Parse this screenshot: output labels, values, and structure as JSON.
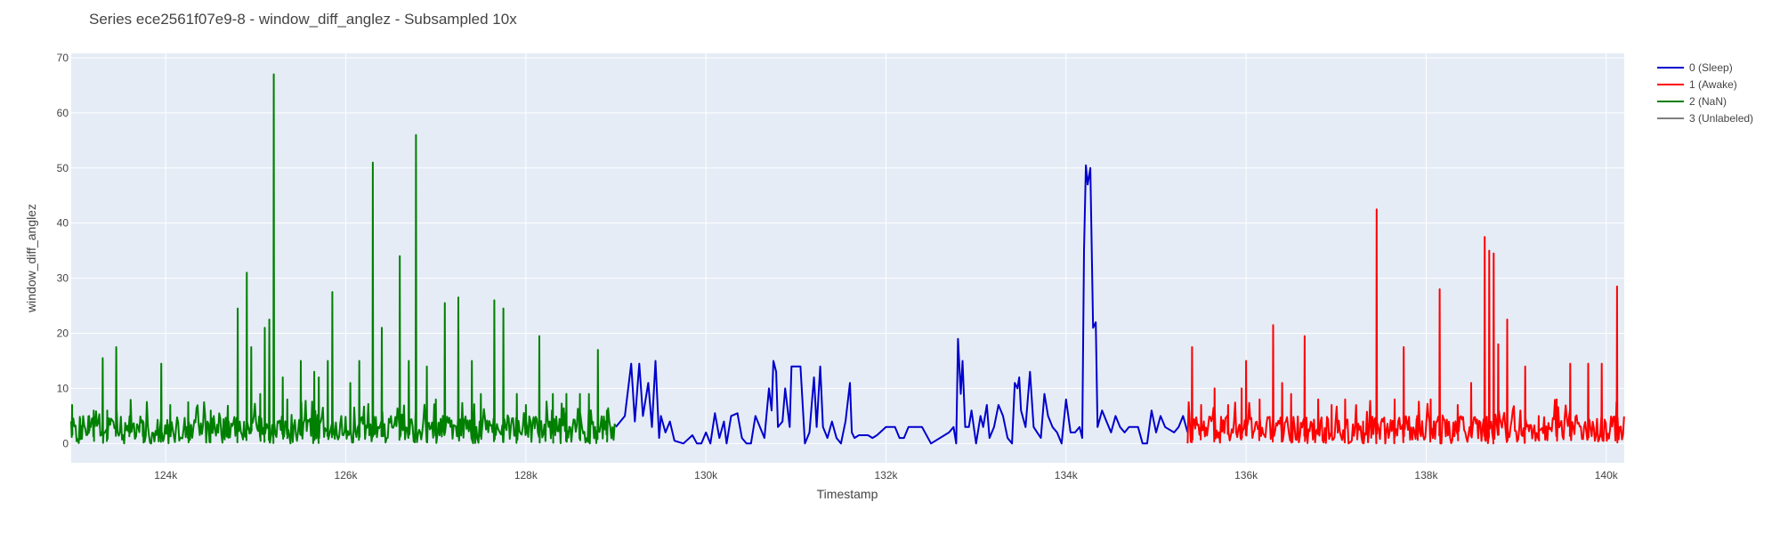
{
  "chart_data": {
    "type": "line",
    "title": "Series ece2561f07e9-8 - window_diff_anglez - Subsampled 10x",
    "xlabel": "Timestamp",
    "ylabel": "window_diff_anglez",
    "xlim": [
      122950,
      140200
    ],
    "ylim": [
      -3.5,
      70.8
    ],
    "x_ticks": [
      124000,
      126000,
      128000,
      130000,
      132000,
      134000,
      136000,
      138000,
      140000
    ],
    "x_tick_labels": [
      "124k",
      "126k",
      "128k",
      "130k",
      "132k",
      "134k",
      "136k",
      "138k",
      "140k"
    ],
    "y_ticks": [
      0,
      10,
      20,
      30,
      40,
      50,
      60,
      70
    ],
    "y_tick_labels": [
      "0",
      "10",
      "20",
      "30",
      "40",
      "50",
      "60",
      "70"
    ],
    "grid": true,
    "legend_position": "top-right outside",
    "series": [
      {
        "name": "0 (Sleep)",
        "color": "#0000cc",
        "x_range": [
          129000,
          135350
        ],
        "points": [
          [
            129000,
            3
          ],
          [
            129100,
            5
          ],
          [
            129170,
            14.5
          ],
          [
            129210,
            4
          ],
          [
            129260,
            14.5
          ],
          [
            129300,
            5
          ],
          [
            129360,
            11
          ],
          [
            129400,
            3
          ],
          [
            129440,
            15
          ],
          [
            129480,
            1
          ],
          [
            129500,
            5
          ],
          [
            129550,
            2
          ],
          [
            129600,
            4
          ],
          [
            129650,
            0.5
          ],
          [
            129750,
            0
          ],
          [
            129850,
            1.5
          ],
          [
            129900,
            0
          ],
          [
            129950,
            0
          ],
          [
            130000,
            2
          ],
          [
            130050,
            0
          ],
          [
            130100,
            5.5
          ],
          [
            130150,
            1
          ],
          [
            130200,
            4
          ],
          [
            130230,
            0
          ],
          [
            130280,
            5
          ],
          [
            130350,
            5.5
          ],
          [
            130400,
            1
          ],
          [
            130450,
            0
          ],
          [
            130500,
            0
          ],
          [
            130550,
            5
          ],
          [
            130650,
            1
          ],
          [
            130700,
            10
          ],
          [
            130730,
            6
          ],
          [
            130750,
            15
          ],
          [
            130780,
            13
          ],
          [
            130800,
            3
          ],
          [
            130850,
            4
          ],
          [
            130880,
            10
          ],
          [
            130930,
            3
          ],
          [
            130950,
            14
          ],
          [
            131050,
            14
          ],
          [
            131100,
            0
          ],
          [
            131150,
            2
          ],
          [
            131180,
            8
          ],
          [
            131200,
            12
          ],
          [
            131230,
            3
          ],
          [
            131270,
            14
          ],
          [
            131300,
            3
          ],
          [
            131350,
            1
          ],
          [
            131400,
            4
          ],
          [
            131450,
            1
          ],
          [
            131500,
            0
          ],
          [
            131550,
            4
          ],
          [
            131600,
            11
          ],
          [
            131620,
            2
          ],
          [
            131650,
            1
          ],
          [
            131700,
            1.5
          ],
          [
            131800,
            1.5
          ],
          [
            131850,
            1
          ],
          [
            131900,
            1.5
          ],
          [
            132000,
            3
          ],
          [
            132100,
            3
          ],
          [
            132150,
            1
          ],
          [
            132200,
            1
          ],
          [
            132250,
            3
          ],
          [
            132400,
            3
          ],
          [
            132500,
            0
          ],
          [
            132700,
            2
          ],
          [
            132750,
            3
          ],
          [
            132780,
            0
          ],
          [
            132800,
            19
          ],
          [
            132830,
            9
          ],
          [
            132850,
            15
          ],
          [
            132880,
            3
          ],
          [
            132920,
            3
          ],
          [
            132950,
            6
          ],
          [
            133000,
            0
          ],
          [
            133050,
            5
          ],
          [
            133080,
            3
          ],
          [
            133120,
            7
          ],
          [
            133150,
            1
          ],
          [
            133200,
            3
          ],
          [
            133250,
            7
          ],
          [
            133300,
            5
          ],
          [
            133350,
            1
          ],
          [
            133400,
            0
          ],
          [
            133430,
            11
          ],
          [
            133460,
            10
          ],
          [
            133480,
            12
          ],
          [
            133500,
            6
          ],
          [
            133550,
            3
          ],
          [
            133600,
            13
          ],
          [
            133640,
            3
          ],
          [
            133680,
            2
          ],
          [
            133720,
            1
          ],
          [
            133760,
            9
          ],
          [
            133800,
            5
          ],
          [
            133850,
            3
          ],
          [
            133900,
            2
          ],
          [
            133950,
            0
          ],
          [
            134000,
            8
          ],
          [
            134050,
            2
          ],
          [
            134100,
            2
          ],
          [
            134150,
            3
          ],
          [
            134180,
            1
          ],
          [
            134200,
            35
          ],
          [
            134220,
            50.5
          ],
          [
            134240,
            47
          ],
          [
            134270,
            50
          ],
          [
            134300,
            21
          ],
          [
            134330,
            22
          ],
          [
            134350,
            3
          ],
          [
            134400,
            6
          ],
          [
            134450,
            4
          ],
          [
            134500,
            2
          ],
          [
            134550,
            5
          ],
          [
            134600,
            3
          ],
          [
            134650,
            2
          ],
          [
            134700,
            3
          ],
          [
            134800,
            3
          ],
          [
            134850,
            0
          ],
          [
            134900,
            0
          ],
          [
            134950,
            6
          ],
          [
            135000,
            2
          ],
          [
            135050,
            5
          ],
          [
            135100,
            3
          ],
          [
            135200,
            2
          ],
          [
            135250,
            3
          ],
          [
            135300,
            5
          ],
          [
            135350,
            2
          ]
        ]
      },
      {
        "name": "1 (Awake)",
        "color": "#ff0000",
        "x_range": [
          135350,
          140200
        ],
        "peaks": [
          [
            135400,
            17.5
          ],
          [
            135500,
            7
          ],
          [
            135650,
            10
          ],
          [
            135800,
            7
          ],
          [
            135950,
            10
          ],
          [
            136000,
            15
          ],
          [
            136150,
            8
          ],
          [
            136300,
            21.5
          ],
          [
            136400,
            11
          ],
          [
            136500,
            9
          ],
          [
            136650,
            19.5
          ],
          [
            136800,
            8
          ],
          [
            136950,
            7
          ],
          [
            137100,
            8
          ],
          [
            137300,
            4
          ],
          [
            137450,
            42.5
          ],
          [
            137650,
            8
          ],
          [
            137750,
            17.5
          ],
          [
            137900,
            5
          ],
          [
            138050,
            8
          ],
          [
            138150,
            28
          ],
          [
            138350,
            7
          ],
          [
            138500,
            11
          ],
          [
            138650,
            37.5
          ],
          [
            138700,
            35
          ],
          [
            138750,
            34.5
          ],
          [
            138800,
            18
          ],
          [
            138900,
            22.5
          ],
          [
            139100,
            14
          ],
          [
            139250,
            5
          ],
          [
            139450,
            8
          ],
          [
            139600,
            14.5
          ],
          [
            139800,
            14.5
          ],
          [
            139950,
            14.5
          ],
          [
            140120,
            28.5
          ]
        ],
        "baseline": [
          0,
          5
        ]
      },
      {
        "name": "2 (NaN)",
        "color": "#008000",
        "x_range": [
          122950,
          129000
        ],
        "peaks": [
          [
            122960,
            7
          ],
          [
            123050,
            4.5
          ],
          [
            123150,
            5
          ],
          [
            123200,
            6
          ],
          [
            123300,
            15.5
          ],
          [
            123350,
            6
          ],
          [
            123450,
            17.5
          ],
          [
            123600,
            5
          ],
          [
            123750,
            4
          ],
          [
            123950,
            14.5
          ],
          [
            124050,
            7
          ],
          [
            124250,
            7.5
          ],
          [
            124500,
            6
          ],
          [
            124700,
            4
          ],
          [
            124800,
            24.5
          ],
          [
            124900,
            31
          ],
          [
            124950,
            17.5
          ],
          [
            125050,
            9
          ],
          [
            125100,
            21
          ],
          [
            125150,
            22.5
          ],
          [
            125200,
            67
          ],
          [
            125300,
            12
          ],
          [
            125350,
            8
          ],
          [
            125500,
            15
          ],
          [
            125650,
            13
          ],
          [
            125700,
            12
          ],
          [
            125800,
            15
          ],
          [
            125850,
            27.5
          ],
          [
            126050,
            11
          ],
          [
            126150,
            15
          ],
          [
            126300,
            51
          ],
          [
            126400,
            21
          ],
          [
            126600,
            34
          ],
          [
            126700,
            15
          ],
          [
            126780,
            56
          ],
          [
            126900,
            14
          ],
          [
            127000,
            8
          ],
          [
            127100,
            25.5
          ],
          [
            127250,
            26.5
          ],
          [
            127400,
            15
          ],
          [
            127500,
            9
          ],
          [
            127650,
            26
          ],
          [
            127750,
            24.5
          ],
          [
            127900,
            9
          ],
          [
            128000,
            7
          ],
          [
            128150,
            19.5
          ],
          [
            128300,
            9
          ],
          [
            128450,
            9
          ],
          [
            128600,
            9
          ],
          [
            128700,
            9
          ],
          [
            128800,
            17
          ],
          [
            128900,
            6
          ]
        ],
        "baseline": [
          0,
          5
        ]
      },
      {
        "name": "3 (Unlabeled)",
        "color": "#808080",
        "x_range": [],
        "points": []
      }
    ]
  }
}
